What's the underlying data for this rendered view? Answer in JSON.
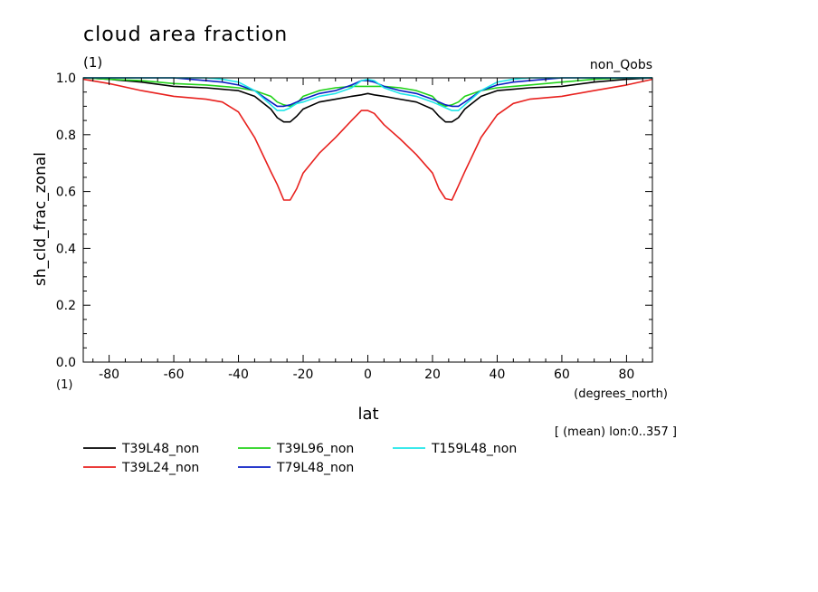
{
  "chart_data": {
    "type": "line",
    "title": "cloud area fraction",
    "title_units": "(1)",
    "subtitle_right": "non_Qobs",
    "ylabel": "sh_cld_frac_zonal",
    "y_units": "(1)",
    "xlabel": "lat",
    "x_units": "(degrees_north)",
    "mean_note": "[ (mean) lon:0..357 ]",
    "xlim": [
      -88,
      88
    ],
    "ylim": [
      0.0,
      1.0
    ],
    "x_ticks": [
      -80,
      -60,
      -40,
      -20,
      0,
      20,
      40,
      60,
      80
    ],
    "y_ticks": [
      0.0,
      0.2,
      0.4,
      0.6,
      0.8,
      1.0
    ],
    "y_tick_labels": [
      "0.0",
      "0.2",
      "0.4",
      "0.6",
      "0.8",
      "1.0"
    ],
    "grid": false,
    "legend_position": "bottom-left, below plot",
    "x": [
      -88,
      -80,
      -70,
      -60,
      -50,
      -45,
      -40,
      -35,
      -30,
      -28,
      -26,
      -24,
      -22,
      -20,
      -15,
      -10,
      -5,
      -2,
      0,
      2,
      5,
      10,
      15,
      20,
      22,
      24,
      26,
      28,
      30,
      35,
      40,
      45,
      50,
      60,
      70,
      80,
      88
    ],
    "series": [
      {
        "name": "T39L48_non",
        "color": "#000000",
        "values": [
          1.0,
          0.995,
          0.985,
          0.97,
          0.965,
          0.96,
          0.955,
          0.935,
          0.89,
          0.86,
          0.845,
          0.845,
          0.865,
          0.89,
          0.915,
          0.925,
          0.935,
          0.94,
          0.945,
          0.94,
          0.935,
          0.925,
          0.915,
          0.89,
          0.865,
          0.845,
          0.845,
          0.86,
          0.89,
          0.935,
          0.955,
          0.96,
          0.965,
          0.97,
          0.985,
          0.995,
          1.0
        ]
      },
      {
        "name": "T39L24_non",
        "color": "#e8211e",
        "values": [
          0.995,
          0.98,
          0.955,
          0.935,
          0.925,
          0.915,
          0.88,
          0.79,
          0.67,
          0.625,
          0.57,
          0.57,
          0.61,
          0.665,
          0.735,
          0.79,
          0.85,
          0.885,
          0.885,
          0.875,
          0.835,
          0.785,
          0.73,
          0.665,
          0.61,
          0.575,
          0.57,
          0.62,
          0.67,
          0.79,
          0.87,
          0.91,
          0.925,
          0.935,
          0.955,
          0.975,
          0.995
        ]
      },
      {
        "name": "T39L96_non",
        "color": "#22d31a",
        "values": [
          1.0,
          0.995,
          0.99,
          0.98,
          0.975,
          0.97,
          0.965,
          0.955,
          0.935,
          0.915,
          0.905,
          0.9,
          0.91,
          0.935,
          0.955,
          0.965,
          0.97,
          0.97,
          0.97,
          0.97,
          0.97,
          0.965,
          0.955,
          0.935,
          0.91,
          0.9,
          0.905,
          0.915,
          0.935,
          0.955,
          0.965,
          0.97,
          0.975,
          0.985,
          0.995,
          1.0,
          1.0
        ]
      },
      {
        "name": "T79L48_non",
        "color": "#0a1ec4",
        "values": [
          1.0,
          1.0,
          1.0,
          1.0,
          0.99,
          0.985,
          0.975,
          0.955,
          0.915,
          0.9,
          0.9,
          0.905,
          0.915,
          0.925,
          0.945,
          0.955,
          0.975,
          0.99,
          0.99,
          0.985,
          0.97,
          0.955,
          0.945,
          0.925,
          0.915,
          0.905,
          0.9,
          0.9,
          0.915,
          0.955,
          0.975,
          0.985,
          0.99,
          1.0,
          1.0,
          1.0,
          1.0
        ]
      },
      {
        "name": "T159L48_non",
        "color": "#1ee6e8",
        "values": [
          1.0,
          1.0,
          1.0,
          1.0,
          1.0,
          0.995,
          0.985,
          0.955,
          0.905,
          0.885,
          0.885,
          0.895,
          0.91,
          0.915,
          0.935,
          0.945,
          0.965,
          0.99,
          0.995,
          0.99,
          0.965,
          0.945,
          0.935,
          0.915,
          0.905,
          0.895,
          0.885,
          0.885,
          0.905,
          0.955,
          0.985,
          0.995,
          1.0,
          1.0,
          1.0,
          1.0,
          1.0
        ]
      }
    ]
  },
  "legend": [
    {
      "name": "T39L48_non",
      "color": "#000000"
    },
    {
      "name": "T39L96_non",
      "color": "#22d31a"
    },
    {
      "name": "T159L48_non",
      "color": "#1ee6e8"
    },
    {
      "name": "T39L24_non",
      "color": "#e8211e"
    },
    {
      "name": "T79L48_non",
      "color": "#0a1ec4"
    }
  ]
}
